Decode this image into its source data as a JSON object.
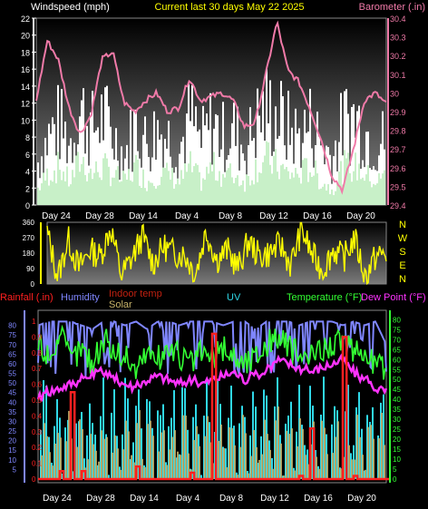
{
  "chart_data": [
    {
      "type": "area",
      "title": "Current last 30 days May 22 2025",
      "ylabel_left": "Windspeed (mph)",
      "ylabel_right": "Barometer (.in)",
      "ylim_left": [
        0,
        22
      ],
      "ylim_right": [
        29.4,
        30.4
      ],
      "yticks_left": [
        "0",
        "2",
        "4",
        "6",
        "8",
        "10",
        "12",
        "14",
        "16",
        "18",
        "20",
        "22"
      ],
      "yticks_right": [
        "29.4",
        "29.5",
        "29.6",
        "29.7",
        "29.8",
        "29.9",
        "30",
        "30.1",
        "30.2",
        "30.3",
        "30.4"
      ],
      "x_ticks": [
        "Day 24",
        "Day 28",
        "Day 14",
        "Day 4",
        "Day 8",
        "Day 12",
        "Day 16",
        "Day 20"
      ],
      "series": [
        {
          "name": "Barometer (.in)",
          "color": "#f07aa8",
          "axis": "right",
          "values": [
            29.96,
            30.28,
            30.18,
            29.92,
            29.78,
            29.88,
            30.18,
            30.22,
            29.95,
            29.9,
            29.96,
            30.0,
            29.9,
            29.92,
            30.08,
            29.96,
            29.98,
            30.0,
            29.96,
            29.82,
            29.84,
            30.1,
            30.38,
            30.12,
            30.06,
            29.92,
            29.76,
            29.56,
            29.48,
            29.7,
            29.96,
            30.0,
            29.94
          ]
        },
        {
          "name": "Gust",
          "color": "#ffffff",
          "axis": "left",
          "values": [
            6,
            10,
            12,
            9,
            14,
            11,
            13,
            10,
            7,
            12,
            9,
            11,
            10,
            8,
            13,
            9,
            12,
            10,
            11,
            8,
            12,
            14,
            13,
            11,
            10,
            12,
            9,
            7,
            12,
            13,
            11,
            9,
            10
          ]
        },
        {
          "name": "Windspeed",
          "color": "#c8f0c8",
          "axis": "left",
          "values": [
            2,
            4,
            5,
            3,
            6,
            4,
            5,
            4,
            3,
            5,
            3,
            4,
            4,
            3,
            5,
            3,
            5,
            4,
            4,
            3,
            5,
            6,
            5,
            4,
            4,
            5,
            3,
            2,
            5,
            5,
            4,
            3,
            4
          ]
        }
      ]
    },
    {
      "type": "line",
      "ylabel_right": "N W S E N",
      "ylim": [
        0,
        360
      ],
      "yticks": [
        "0",
        "90",
        "180",
        "270",
        "360"
      ],
      "compass": [
        "N",
        "W",
        "S",
        "E",
        "N"
      ],
      "series": [
        {
          "name": "Wind direction",
          "color": "#ffff00",
          "values": [
            300,
            40,
            260,
            90,
            200,
            160,
            330,
            50,
            150,
            280,
            120,
            220,
            180,
            170,
            60,
            310,
            140,
            200,
            90,
            250,
            160,
            180,
            230,
            110,
            320,
            170,
            80,
            200,
            150,
            270,
            40,
            160,
            180
          ]
        }
      ]
    },
    {
      "type": "line",
      "x_ticks": [
        "Day 24",
        "Day 28",
        "Day 14",
        "Day 4",
        "Day 8",
        "Day 12",
        "Day 16",
        "Day 20"
      ],
      "legend_left": [
        "Rainfall (.in)",
        "Humidity",
        "Indoor temp",
        "Solar",
        "UV"
      ],
      "legend_right": [
        "Temperature (°F)",
        "Dew Point (°F)"
      ],
      "yticks_rain": [
        "0",
        "0.1",
        "0.2",
        "0.3",
        "0.4",
        "0.5",
        "0.6",
        "0.7",
        "0.8",
        "0.9",
        "1"
      ],
      "yticks_humidity": [
        "5",
        "10",
        "15",
        "20",
        "25",
        "30",
        "35",
        "40",
        "45",
        "50",
        "55",
        "60",
        "65",
        "70",
        "75",
        "80"
      ],
      "yticks_temp": [
        "0",
        "5",
        "10",
        "15",
        "20",
        "25",
        "30",
        "35",
        "40",
        "45",
        "50",
        "55",
        "60",
        "65",
        "70",
        "75",
        "80"
      ],
      "series": [
        {
          "name": "Humidity",
          "color": "#7f86ff",
          "values": [
            80,
            82,
            85,
            82,
            80,
            78,
            84,
            82,
            80,
            82,
            78,
            84,
            82,
            80,
            82,
            84,
            82,
            80,
            82,
            84,
            78,
            82,
            85,
            83,
            80,
            82,
            84,
            82,
            80,
            82,
            80,
            82,
            70
          ]
        },
        {
          "name": "Temperature (°F)",
          "color": "#33ff33",
          "values": [
            68,
            62,
            72,
            60,
            66,
            58,
            70,
            64,
            62,
            55,
            64,
            60,
            66,
            62,
            58,
            64,
            60,
            66,
            62,
            58,
            62,
            68,
            72,
            66,
            62,
            60,
            66,
            68,
            70,
            62,
            64,
            58,
            56
          ]
        },
        {
          "name": "Dew Point (°F)",
          "color": "#ff33ff",
          "values": [
            40,
            44,
            46,
            48,
            50,
            52,
            54,
            50,
            48,
            46,
            50,
            52,
            50,
            48,
            50,
            48,
            50,
            52,
            54,
            50,
            52,
            54,
            60,
            58,
            56,
            54,
            56,
            58,
            60,
            54,
            50,
            46,
            44
          ]
        },
        {
          "name": "Rainfall (.in)",
          "color": "#ff2020",
          "values": [
            0,
            0,
            0.05,
            0.55,
            0.05,
            0,
            0,
            0,
            0,
            0.08,
            0,
            0,
            0,
            0,
            0.04,
            0,
            0.92,
            0,
            0,
            0,
            0,
            0,
            0,
            0,
            0.02,
            0.32,
            0,
            0,
            0.9,
            0.02,
            0,
            0,
            0
          ]
        },
        {
          "name": "Solar",
          "color": "#c8b46a",
          "values": []
        },
        {
          "name": "UV",
          "color": "#30d8e8",
          "values": []
        },
        {
          "name": "Indoor temp",
          "color": "#c02010",
          "values": []
        }
      ]
    }
  ],
  "colors": {
    "legend_rain": "#ff2020",
    "legend_humidity": "#7f86ff",
    "legend_indoor": "#c02010",
    "legend_solar": "#c8b46a",
    "legend_uv": "#30d8e8",
    "legend_temp": "#33ff33",
    "legend_dew": "#ff33ff",
    "title": "#ffff00",
    "baro_label": "#f07aa8",
    "text": "#ffffff"
  }
}
